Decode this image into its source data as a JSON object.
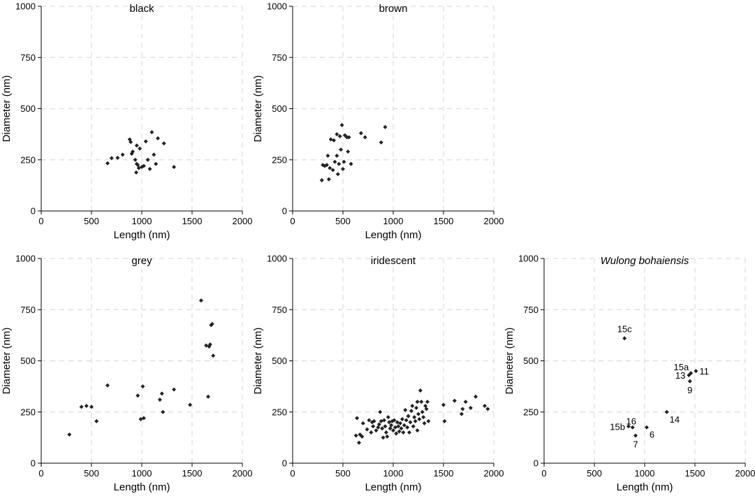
{
  "colors": {
    "point": "#222222",
    "grid": "#dcdcdc",
    "axis": "#000000"
  },
  "chart_data": [
    {
      "type": "scatter",
      "title": "black",
      "xlabel": "Length (nm)",
      "ylabel": "Diameter (nm)",
      "xlim": [
        0,
        2000
      ],
      "ylim": [
        0,
        1000
      ],
      "xticks": [
        "0",
        "500",
        "1000",
        "1500",
        "2000"
      ],
      "yticks": [
        "0",
        "250",
        "500",
        "750",
        "1000"
      ],
      "grid": true,
      "points": [
        [
          660,
          233
        ],
        [
          700,
          258
        ],
        [
          760,
          260
        ],
        [
          810,
          275
        ],
        [
          880,
          350
        ],
        [
          890,
          337
        ],
        [
          910,
          290
        ],
        [
          935,
          250
        ],
        [
          945,
          188
        ],
        [
          950,
          320
        ],
        [
          960,
          225
        ],
        [
          970,
          210
        ],
        [
          980,
          305
        ],
        [
          1000,
          215
        ],
        [
          1020,
          220
        ],
        [
          1040,
          340
        ],
        [
          1060,
          250
        ],
        [
          1080,
          205
        ],
        [
          1100,
          385
        ],
        [
          1120,
          275
        ],
        [
          1140,
          230
        ],
        [
          1160,
          355
        ],
        [
          1220,
          330
        ],
        [
          1320,
          215
        ],
        [
          900,
          280
        ],
        [
          950,
          230
        ]
      ]
    },
    {
      "type": "scatter",
      "title": "brown",
      "xlabel": "Length (nm)",
      "ylabel": "Diameter (nm)",
      "xlim": [
        0,
        2000
      ],
      "ylim": [
        0,
        1000
      ],
      "xticks": [
        "0",
        "500",
        "1000",
        "1500",
        "2000"
      ],
      "yticks": [
        "0",
        "250",
        "500",
        "750",
        "1000"
      ],
      "grid": true,
      "points": [
        [
          290,
          150
        ],
        [
          300,
          225
        ],
        [
          320,
          220
        ],
        [
          340,
          225
        ],
        [
          350,
          270
        ],
        [
          360,
          155
        ],
        [
          370,
          210
        ],
        [
          380,
          350
        ],
        [
          400,
          200
        ],
        [
          410,
          345
        ],
        [
          420,
          240
        ],
        [
          440,
          270
        ],
        [
          440,
          375
        ],
        [
          450,
          180
        ],
        [
          460,
          230
        ],
        [
          470,
          365
        ],
        [
          480,
          300
        ],
        [
          490,
          420
        ],
        [
          500,
          205
        ],
        [
          510,
          240
        ],
        [
          520,
          370
        ],
        [
          540,
          360
        ],
        [
          550,
          290
        ],
        [
          560,
          360
        ],
        [
          580,
          230
        ],
        [
          680,
          380
        ],
        [
          720,
          360
        ],
        [
          880,
          335
        ],
        [
          920,
          410
        ]
      ]
    },
    {
      "type": "scatter",
      "title": "grey",
      "xlabel": "Length (nm)",
      "ylabel": "Diameter (nm)",
      "xlim": [
        0,
        2000
      ],
      "ylim": [
        0,
        1000
      ],
      "xticks": [
        "0",
        "500",
        "1000",
        "1500",
        "2000"
      ],
      "yticks": [
        "0",
        "250",
        "500",
        "750",
        "1000"
      ],
      "grid": true,
      "points": [
        [
          280,
          140
        ],
        [
          400,
          275
        ],
        [
          450,
          280
        ],
        [
          500,
          275
        ],
        [
          550,
          205
        ],
        [
          660,
          380
        ],
        [
          960,
          330
        ],
        [
          990,
          215
        ],
        [
          1010,
          375
        ],
        [
          1020,
          220
        ],
        [
          1180,
          310
        ],
        [
          1200,
          340
        ],
        [
          1210,
          250
        ],
        [
          1320,
          360
        ],
        [
          1480,
          285
        ],
        [
          1590,
          795
        ],
        [
          1640,
          575
        ],
        [
          1660,
          325
        ],
        [
          1670,
          570
        ],
        [
          1680,
          580
        ],
        [
          1690,
          675
        ],
        [
          1700,
          680
        ],
        [
          1710,
          525
        ]
      ]
    },
    {
      "type": "scatter",
      "title": "iridescent",
      "xlabel": "Length (nm)",
      "ylabel": "Diameter (nm)",
      "xlim": [
        0,
        2000
      ],
      "ylim": [
        0,
        1000
      ],
      "xticks": [
        "0",
        "500",
        "1000",
        "1500",
        "2000"
      ],
      "yticks": [
        "0",
        "250",
        "500",
        "750",
        "1000"
      ],
      "grid": true,
      "points": [
        [
          630,
          135
        ],
        [
          640,
          220
        ],
        [
          660,
          100
        ],
        [
          670,
          140
        ],
        [
          690,
          130
        ],
        [
          700,
          195
        ],
        [
          740,
          165
        ],
        [
          760,
          210
        ],
        [
          780,
          150
        ],
        [
          790,
          200
        ],
        [
          800,
          180
        ],
        [
          810,
          205
        ],
        [
          830,
          160
        ],
        [
          850,
          175
        ],
        [
          860,
          190
        ],
        [
          870,
          250
        ],
        [
          880,
          205
        ],
        [
          890,
          170
        ],
        [
          900,
          125
        ],
        [
          910,
          210
        ],
        [
          920,
          180
        ],
        [
          930,
          150
        ],
        [
          940,
          130
        ],
        [
          950,
          225
        ],
        [
          960,
          200
        ],
        [
          970,
          170
        ],
        [
          980,
          185
        ],
        [
          990,
          205
        ],
        [
          1000,
          160
        ],
        [
          1010,
          210
        ],
        [
          1020,
          175
        ],
        [
          1030,
          145
        ],
        [
          1040,
          200
        ],
        [
          1050,
          180
        ],
        [
          1060,
          155
        ],
        [
          1070,
          195
        ],
        [
          1080,
          170
        ],
        [
          1090,
          215
        ],
        [
          1100,
          150
        ],
        [
          1110,
          185
        ],
        [
          1120,
          260
        ],
        [
          1130,
          210
        ],
        [
          1140,
          175
        ],
        [
          1150,
          230
        ],
        [
          1160,
          150
        ],
        [
          1170,
          200
        ],
        [
          1180,
          255
        ],
        [
          1190,
          280
        ],
        [
          1200,
          180
        ],
        [
          1210,
          225
        ],
        [
          1220,
          205
        ],
        [
          1230,
          270
        ],
        [
          1240,
          160
        ],
        [
          1250,
          240
        ],
        [
          1260,
          215
        ],
        [
          1270,
          355
        ],
        [
          1280,
          300
        ],
        [
          1290,
          250
        ],
        [
          1300,
          225
        ],
        [
          1310,
          195
        ],
        [
          1320,
          280
        ],
        [
          1330,
          265
        ],
        [
          1340,
          300
        ],
        [
          1350,
          205
        ],
        [
          1500,
          285
        ],
        [
          1510,
          205
        ],
        [
          1610,
          305
        ],
        [
          1680,
          240
        ],
        [
          1690,
          265
        ],
        [
          1720,
          300
        ],
        [
          1770,
          270
        ],
        [
          1820,
          325
        ],
        [
          1910,
          280
        ],
        [
          1940,
          265
        ],
        [
          1150,
          230
        ],
        [
          1240,
          300
        ]
      ]
    },
    {
      "type": "scatter",
      "title": "Wulong bohaiensis",
      "title_italic": true,
      "xlabel": "Length (nm)",
      "ylabel": "Diameter (nm)",
      "xlim": [
        0,
        2000
      ],
      "ylim": [
        0,
        1000
      ],
      "xticks": [
        "0",
        "500",
        "1000",
        "1500",
        "2000"
      ],
      "yticks": [
        "0",
        "250",
        "500",
        "750",
        "1000"
      ],
      "grid": true,
      "points": [
        {
          "x": 800,
          "y": 610,
          "label": "15c",
          "anchor": "above"
        },
        {
          "x": 1460,
          "y": 440,
          "label": "15a",
          "anchor": "above-left"
        },
        {
          "x": 1440,
          "y": 430,
          "label": "13",
          "anchor": "left"
        },
        {
          "x": 1510,
          "y": 450,
          "label": "11",
          "anchor": "right"
        },
        {
          "x": 1450,
          "y": 400,
          "label": "9",
          "anchor": "below"
        },
        {
          "x": 1220,
          "y": 250,
          "label": "14",
          "anchor": "below-right"
        },
        {
          "x": 840,
          "y": 180,
          "label": "15b",
          "anchor": "left"
        },
        {
          "x": 880,
          "y": 175,
          "label": "16",
          "anchor": "above-right"
        },
        {
          "x": 1020,
          "y": 175,
          "label": "6",
          "anchor": "below-right"
        },
        {
          "x": 910,
          "y": 135,
          "label": "7",
          "anchor": "below"
        }
      ]
    }
  ]
}
